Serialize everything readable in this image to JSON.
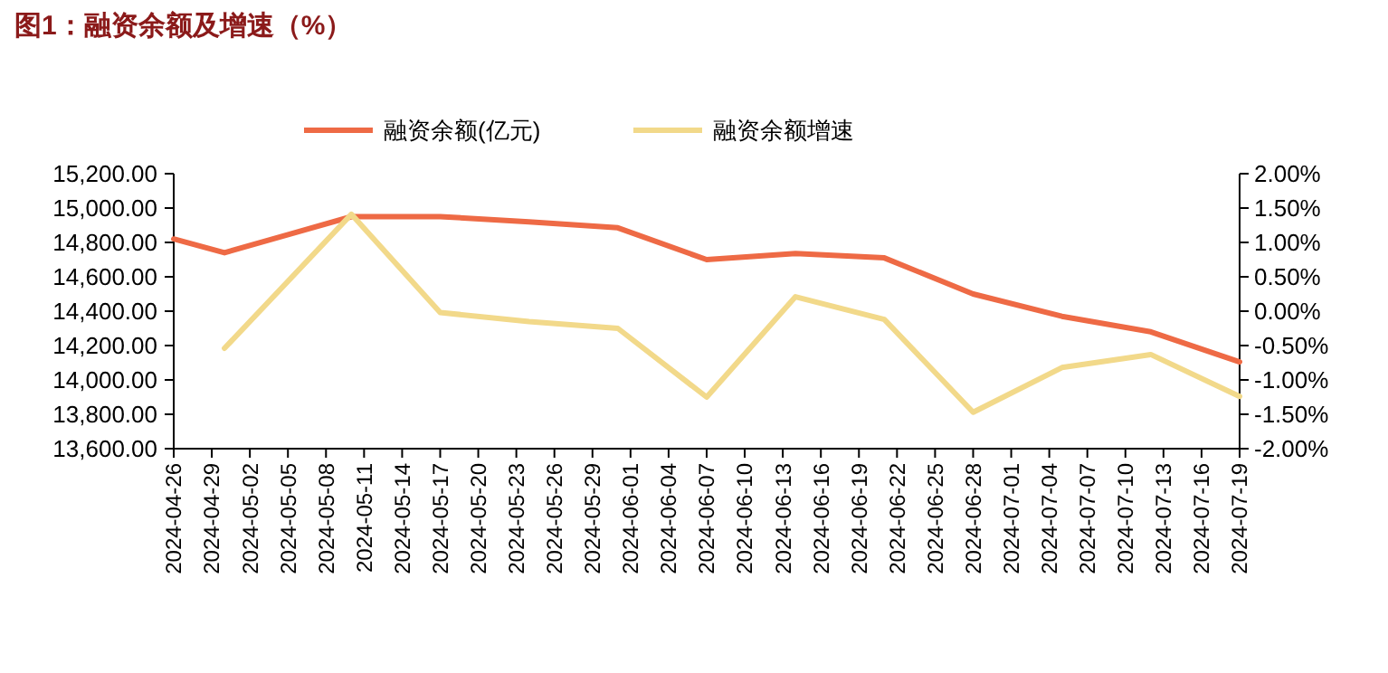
{
  "chart_data": {
    "type": "line",
    "title": "图1：融资余额及增速（%）",
    "x": [
      "2024-04-26",
      "2024-04-30",
      "2024-05-10",
      "2024-05-17",
      "2024-05-24",
      "2024-05-31",
      "2024-06-07",
      "2024-06-14",
      "2024-06-21",
      "2024-06-28",
      "2024-07-05",
      "2024-07-12",
      "2024-07-19"
    ],
    "series": [
      {
        "name": "融资余额(亿元)",
        "color": "#ee6a45",
        "values": [
          14820,
          14740,
          14950,
          14950,
          14920,
          14885,
          14700,
          14735,
          14710,
          14500,
          14370,
          14280,
          14105
        ]
      },
      {
        "name": "融资余额增速",
        "color": "#f2d98a",
        "axis": "y2",
        "values": [
          null,
          -0.54,
          1.41,
          -0.02,
          -0.15,
          -0.25,
          -1.25,
          0.21,
          -0.12,
          -1.47,
          -0.82,
          -0.63,
          -1.24
        ]
      }
    ],
    "xlim": [
      "2024-04-26",
      "2024-07-19"
    ],
    "xticks": [
      "2024-04-26",
      "2024-04-29",
      "2024-05-02",
      "2024-05-05",
      "2024-05-08",
      "2024-05-11",
      "2024-05-14",
      "2024-05-17",
      "2024-05-20",
      "2024-05-23",
      "2024-05-26",
      "2024-05-29",
      "2024-06-01",
      "2024-06-04",
      "2024-06-07",
      "2024-06-10",
      "2024-06-13",
      "2024-06-16",
      "2024-06-19",
      "2024-06-22",
      "2024-06-25",
      "2024-06-28",
      "2024-07-01",
      "2024-07-04",
      "2024-07-07",
      "2024-07-10",
      "2024-07-13",
      "2024-07-16",
      "2024-07-19"
    ],
    "ylim": [
      13600,
      15200
    ],
    "yticks": [
      {
        "value": 13600,
        "label": "13,600.00"
      },
      {
        "value": 13800,
        "label": "13,800.00"
      },
      {
        "value": 14000,
        "label": "14,000.00"
      },
      {
        "value": 14200,
        "label": "14,200.00"
      },
      {
        "value": 14400,
        "label": "14,400.00"
      },
      {
        "value": 14600,
        "label": "14,600.00"
      },
      {
        "value": 14800,
        "label": "14,800.00"
      },
      {
        "value": 15000,
        "label": "15,000.00"
      },
      {
        "value": 15200,
        "label": "15,200.00"
      }
    ],
    "y2lim": [
      -2,
      2
    ],
    "y2ticks": [
      {
        "value": -2,
        "label": "-2.00%"
      },
      {
        "value": -1.5,
        "label": "-1.50%"
      },
      {
        "value": -1,
        "label": "-1.00%"
      },
      {
        "value": -0.5,
        "label": "-0.50%"
      },
      {
        "value": 0,
        "label": "0.00%"
      },
      {
        "value": 0.5,
        "label": "0.50%"
      },
      {
        "value": 1,
        "label": "1.00%"
      },
      {
        "value": 1.5,
        "label": "1.50%"
      },
      {
        "value": 2,
        "label": "2.00%"
      }
    ],
    "legend": "top",
    "grid": false,
    "marker": "none",
    "line_style": "solid"
  }
}
